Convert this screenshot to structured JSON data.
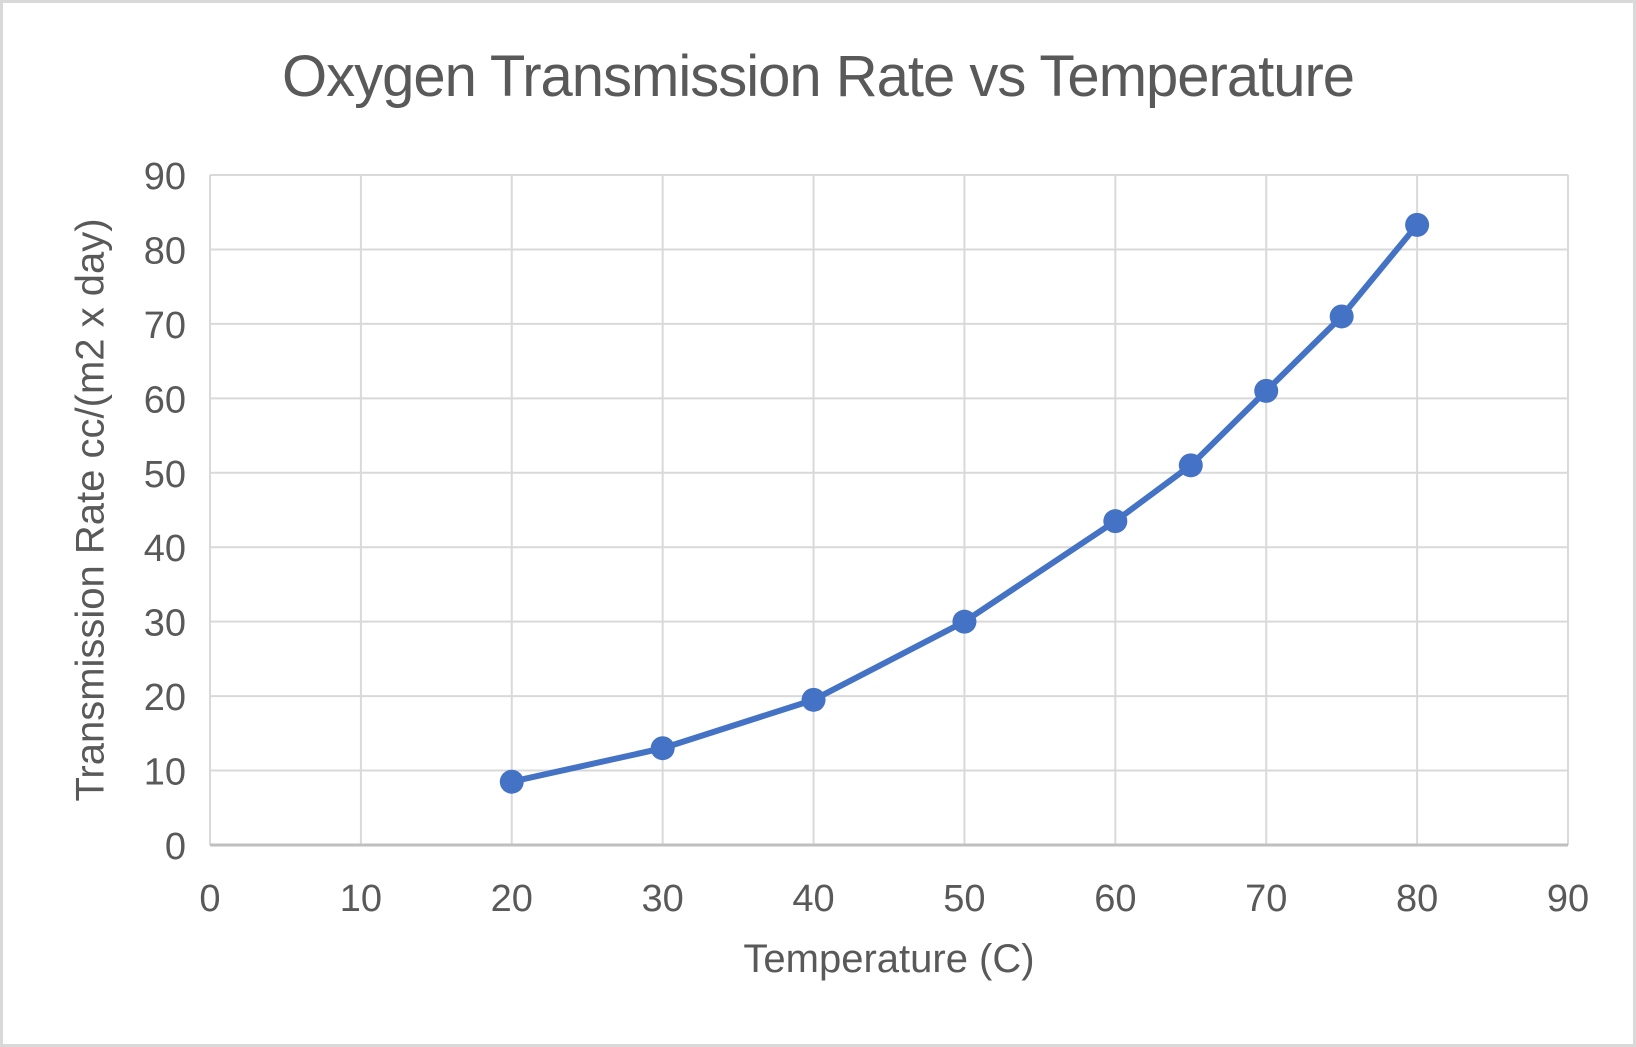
{
  "chart_data": {
    "type": "line",
    "title": "Oxygen Transmission Rate vs Temperature",
    "xlabel": "Temperature (C)",
    "ylabel": "Transmission Rate cc/(m2 x day)",
    "x": [
      20,
      30,
      40,
      50,
      60,
      65,
      70,
      75,
      80
    ],
    "y": [
      8.5,
      13,
      19.5,
      30,
      43.5,
      51,
      61,
      71,
      83.3
    ],
    "xlim": [
      0,
      90
    ],
    "ylim": [
      0,
      90
    ],
    "xtick_step": 10,
    "ytick_step": 10,
    "grid": true,
    "legend_position": "none",
    "line_color": "#4472C4",
    "marker": "circle"
  },
  "styles": {
    "text_color": "#595959",
    "gridline_color": "#d9d9d9",
    "axis_line_color": "#bfbfbf",
    "background": "#ffffff",
    "frame_border_color": "#d9d9d9"
  }
}
